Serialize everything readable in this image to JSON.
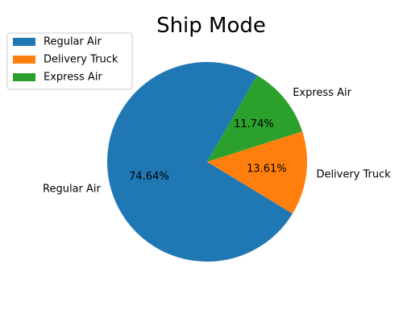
{
  "chart_data": {
    "type": "pie",
    "title": "Ship Mode",
    "categories": [
      "Regular Air",
      "Delivery Truck",
      "Express Air"
    ],
    "values": [
      74.64,
      13.61,
      11.74
    ],
    "percent_labels": [
      "74.64%",
      "13.61%",
      "11.74%"
    ],
    "colors": [
      "#1f77b4",
      "#ff7f0e",
      "#2ca02c"
    ],
    "legend": "top-left",
    "grid": false
  }
}
